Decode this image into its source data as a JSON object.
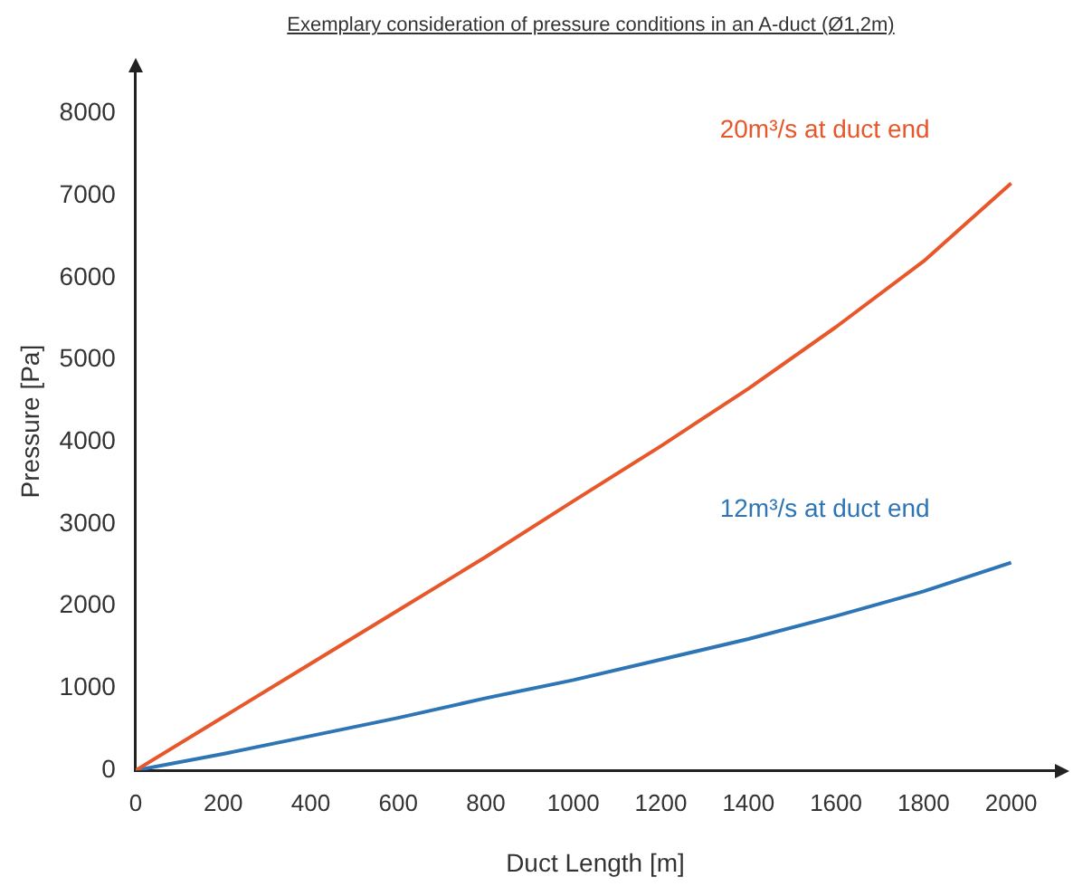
{
  "chart_data": {
    "type": "line",
    "title": "Exemplary consideration of pressure conditions in an A-duct (Ø1,2m)",
    "xlabel": "Duct Length [m]",
    "ylabel": "Pressure [Pa]",
    "x": [
      0,
      200,
      400,
      600,
      800,
      1000,
      1200,
      1400,
      1600,
      1800,
      2000
    ],
    "series": [
      {
        "name": "20m³/s at duct end",
        "color": "#e8572a",
        "values": [
          0,
          650,
          1300,
          1950,
          2600,
          3280,
          3950,
          4650,
          5400,
          6200,
          7150
        ]
      },
      {
        "name": "12m³/s at duct end",
        "color": "#2e75b6",
        "values": [
          0,
          200,
          420,
          640,
          880,
          1100,
          1350,
          1600,
          1880,
          2180,
          2530
        ]
      }
    ],
    "xlim": [
      0,
      2100
    ],
    "ylim": [
      0,
      8500
    ],
    "xticks": [
      0,
      200,
      400,
      600,
      800,
      1000,
      1200,
      1400,
      1600,
      1800,
      2000
    ],
    "yticks": [
      0,
      1000,
      2000,
      3000,
      4000,
      5000,
      6000,
      7000,
      8000
    ],
    "grid": false,
    "legend": false,
    "marker": "none",
    "line_style": "solid"
  }
}
